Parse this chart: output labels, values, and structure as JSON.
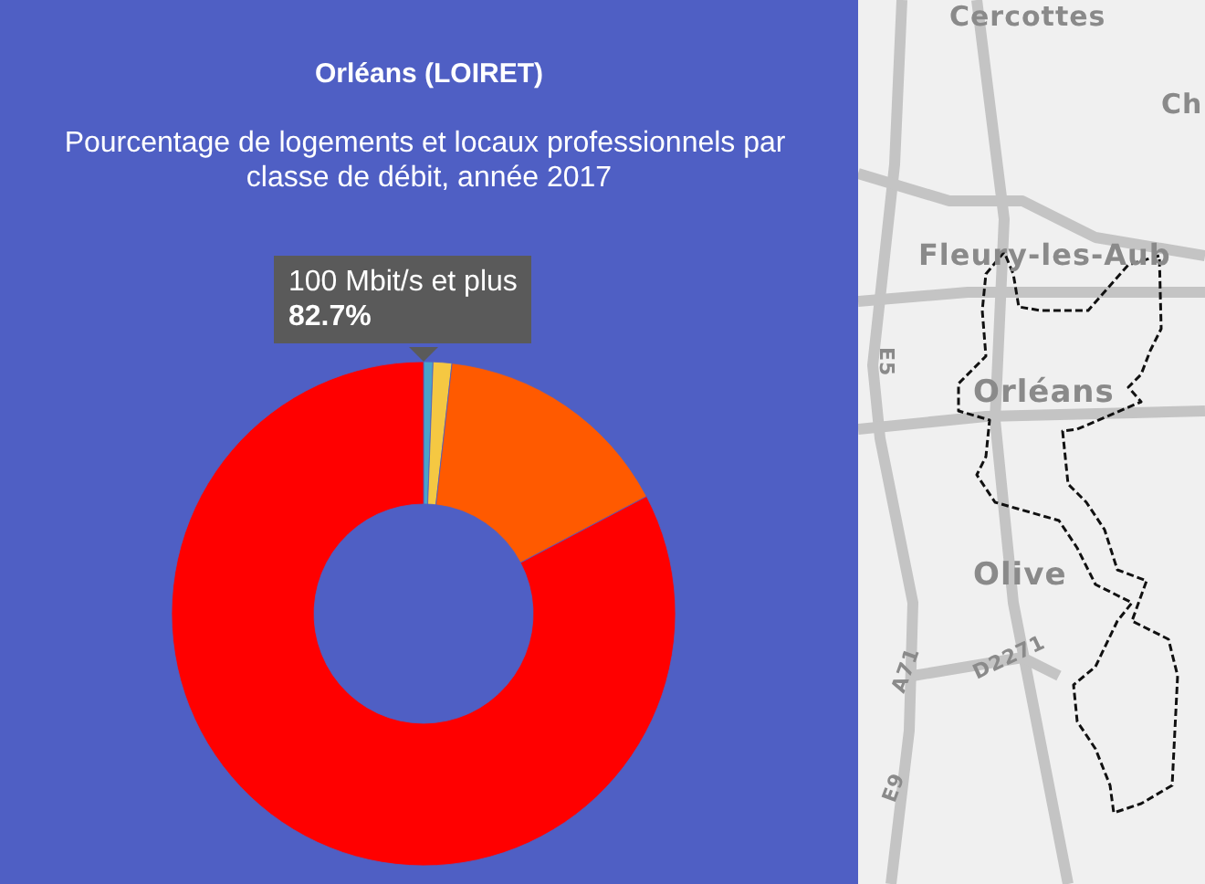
{
  "chart_data": {
    "type": "donut",
    "title": "Orléans (LOIRET)",
    "subtitle": "Pourcentage de logements et locaux professionnels par classe de débit, année 2017",
    "categories": [
      null,
      null,
      null,
      "100 Mbit/s et plus"
    ],
    "values": [
      0.6,
      1.2,
      15.5,
      82.7
    ],
    "colors": [
      "#4aa3c9",
      "#f5c842",
      "#ff5a00",
      "#ff0000"
    ],
    "value_labels": [
      null,
      null,
      null,
      "82.7%"
    ],
    "annotations": [
      "Cercottes",
      "Ch",
      "Fleury-les-Aub",
      "Orléans",
      "Olive",
      "E5",
      "D2271",
      "A71",
      "E9"
    ]
  }
}
